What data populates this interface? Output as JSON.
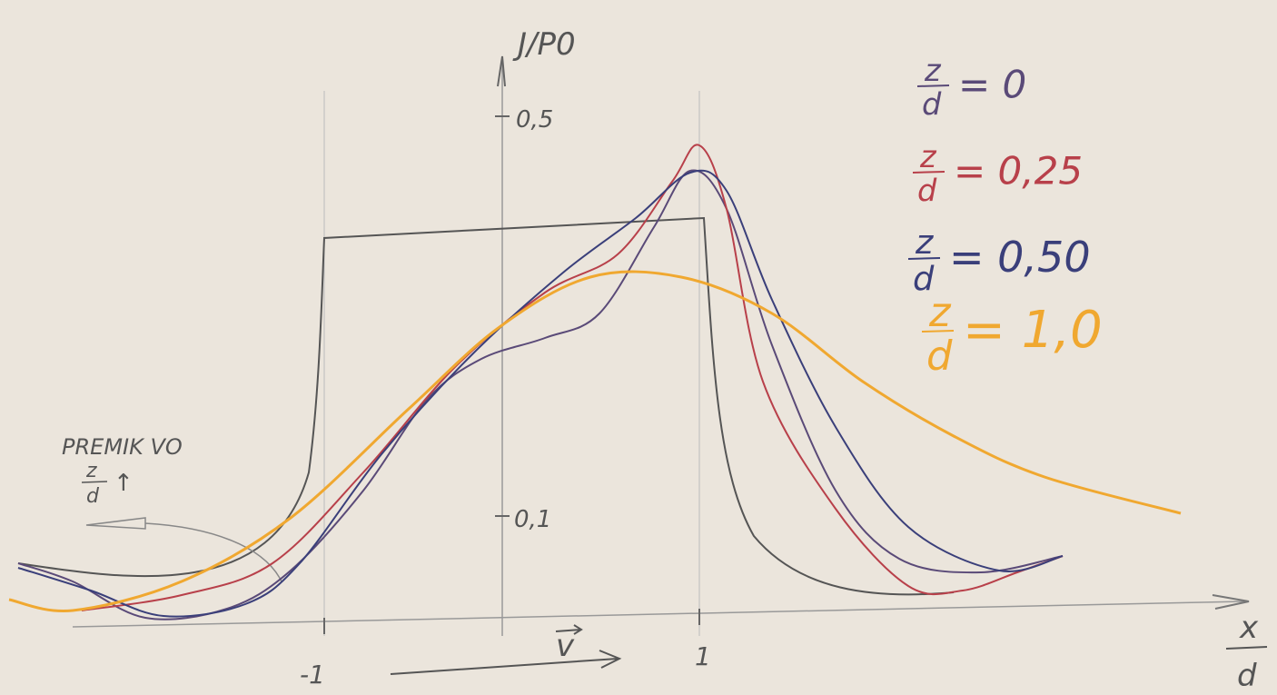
{
  "axes": {
    "y_label": "J/P0",
    "y_ticks": [
      "0,5",
      "0,1"
    ],
    "x_ticks": [
      "-1",
      "1"
    ],
    "x_label_numerator": "x",
    "x_label_denominator": "d",
    "velocity_label": "v"
  },
  "legend": [
    {
      "numerator": "z",
      "denominator": "d",
      "value": "= 0",
      "color": "#5a4a78"
    },
    {
      "numerator": "z",
      "denominator": "d",
      "value": "= 0,25",
      "color": "#b8404a"
    },
    {
      "numerator": "z",
      "denominator": "d",
      "value": "= 0,50",
      "color": "#3a3f7a"
    },
    {
      "numerator": "z",
      "denominator": "d",
      "value": "= 1,0",
      "color": "#f0a830"
    }
  ],
  "annotation": {
    "line1": "PREMIK VO",
    "numerator": "z",
    "denominator": "d",
    "arrow": "↑"
  }
}
